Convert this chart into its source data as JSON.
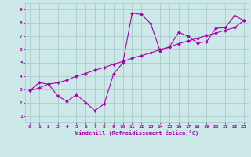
{
  "xlabel": "Windchill (Refroidissement éolien,°C)",
  "ylabel": "",
  "xlim": [
    -0.5,
    23.5
  ],
  "ylim": [
    0.5,
    9.5
  ],
  "xticks": [
    0,
    1,
    2,
    3,
    4,
    5,
    6,
    7,
    8,
    9,
    10,
    11,
    12,
    13,
    14,
    15,
    16,
    17,
    18,
    19,
    20,
    21,
    22,
    23
  ],
  "yticks": [
    1,
    2,
    3,
    4,
    5,
    6,
    7,
    8,
    9
  ],
  "bg_color": "#cce8e8",
  "grid_color": "#aacccc",
  "line_color": "#aa00aa",
  "line1_x": [
    0,
    1,
    2,
    3,
    4,
    5,
    6,
    7,
    8,
    9,
    10,
    11,
    12,
    13,
    14,
    15,
    16,
    17,
    18,
    19,
    20,
    21,
    22,
    23
  ],
  "line1_y": [
    2.9,
    3.5,
    3.4,
    2.5,
    2.1,
    2.6,
    2.0,
    1.4,
    1.9,
    4.15,
    5.0,
    8.75,
    8.65,
    7.95,
    5.9,
    6.2,
    7.3,
    7.0,
    6.5,
    6.6,
    7.6,
    7.65,
    8.55,
    8.2
  ],
  "line2_x": [
    0,
    1,
    2,
    3,
    4,
    5,
    6,
    7,
    8,
    9,
    10,
    11,
    12,
    13,
    14,
    15,
    16,
    17,
    18,
    19,
    20,
    21,
    22,
    23
  ],
  "line2_y": [
    2.9,
    3.1,
    3.4,
    3.5,
    3.7,
    4.0,
    4.2,
    4.45,
    4.65,
    4.9,
    5.1,
    5.35,
    5.55,
    5.75,
    6.0,
    6.2,
    6.45,
    6.65,
    6.85,
    7.05,
    7.25,
    7.45,
    7.65,
    8.2
  ],
  "marker": "D",
  "markersize": 2.0,
  "linewidth": 0.8,
  "tick_fontsize": 4.5,
  "xlabel_fontsize": 5.0
}
